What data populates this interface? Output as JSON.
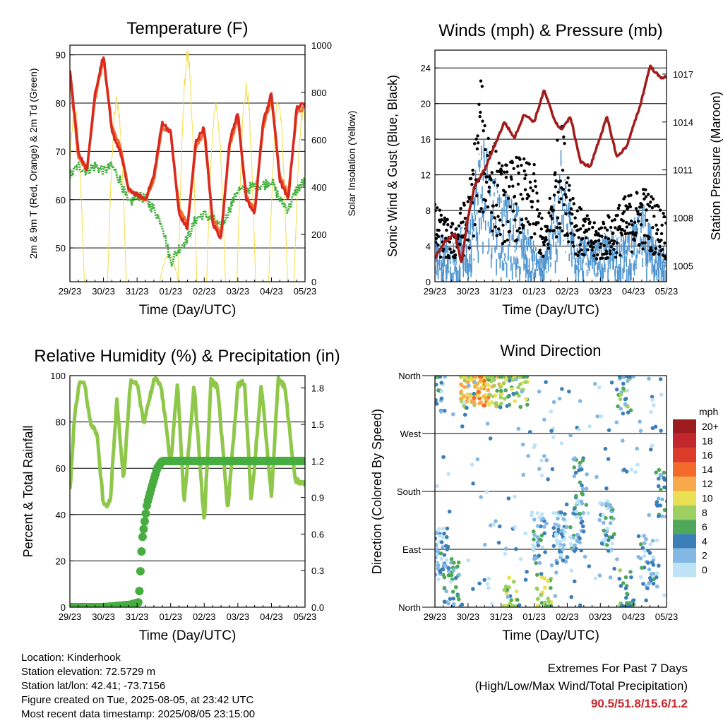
{
  "colors": {
    "temp_2m": "#d82a20",
    "temp_9m": "#f36a2a",
    "dewpoint": "#3fae3a",
    "insolation": "#f3dc4a",
    "wind_sonic": "#4f95d1",
    "wind_gust": "#000000",
    "pressure": "#a21c1c",
    "humidity": "#8fc74a",
    "rainfall": "#47ad40"
  },
  "shared_x_ticks": [
    "29/23",
    "30/23",
    "31/23",
    "01/23",
    "02/23",
    "03/23",
    "04/23",
    "05/23"
  ],
  "chart_data": [
    {
      "id": "temperature",
      "type": "line",
      "title": "Temperature (F)",
      "xlabel": "Time (Day/UTC)",
      "ylabel": "2m & 9m T (Red, Orange) & 2m Td (Green)",
      "y2label": "Solar Insolation (Yellow)",
      "x": [
        0,
        0.25,
        0.5,
        0.75,
        1,
        1.25,
        1.5,
        1.75,
        2,
        2.25,
        2.5,
        2.75,
        3,
        3.25,
        3.5,
        3.75,
        4,
        4.25,
        4.5,
        4.75,
        5,
        5.25,
        5.5,
        5.75,
        6,
        6.25,
        6.5,
        6.75,
        7
      ],
      "ylim": [
        43,
        92
      ],
      "yticks": [
        50,
        60,
        70,
        80,
        90
      ],
      "y2lim": [
        0,
        1000
      ],
      "y2ticks": [
        0,
        200,
        400,
        600,
        800,
        1000
      ],
      "series": [
        {
          "name": "2m T",
          "values": [
            87,
            70,
            66,
            82,
            90,
            74,
            70,
            62,
            61,
            60,
            65,
            76,
            74,
            57,
            54,
            72,
            75,
            55,
            52,
            72,
            78,
            60,
            57,
            76,
            82,
            64,
            60,
            79,
            80
          ]
        },
        {
          "name": "9m T",
          "values": [
            86,
            69,
            66,
            81,
            89,
            75,
            71,
            62,
            61,
            60,
            64,
            75,
            74,
            58,
            55,
            71,
            74,
            56,
            53,
            71,
            77,
            61,
            58,
            75,
            81,
            65,
            61,
            78,
            79
          ]
        },
        {
          "name": "2m Td",
          "values": [
            65,
            67,
            66,
            67,
            66,
            67,
            64,
            59,
            61,
            60,
            58,
            55,
            47,
            50,
            52,
            56,
            57,
            56,
            54,
            58,
            62,
            62,
            63,
            63,
            64,
            60,
            58,
            62,
            64
          ]
        },
        {
          "name": "Solar Insolation",
          "axis": "y2",
          "peaks_day": [
            0.15,
            1.4,
            2.95,
            3.5,
            4.35,
            5.25,
            6.2,
            6.95
          ],
          "peaks_value": [
            750,
            800,
            120,
            1000,
            780,
            850,
            800,
            750
          ]
        }
      ]
    },
    {
      "id": "winds",
      "type": "scatter",
      "title": "Winds (mph) & Pressure (mb)",
      "xlabel": "Time (Day/UTC)",
      "ylabel": "Sonic Wind & Gust (Blue, Black)",
      "y2label": "Station Pressure (Maroon)",
      "ylim": [
        0,
        26
      ],
      "yticks": [
        0,
        4,
        8,
        12,
        16,
        20,
        24
      ],
      "y2lim": [
        1004,
        1018.5
      ],
      "y2ticks": [
        1005,
        1008,
        1011,
        1014,
        1017
      ],
      "series": [
        {
          "name": "Sonic Wind",
          "x": [
            0,
            0.5,
            1,
            1.4,
            1.7,
            2,
            2.5,
            3,
            3.3,
            3.8,
            4.3,
            4.8,
            5.3,
            5.8,
            6.3,
            6.8,
            7
          ],
          "values": [
            4,
            3,
            5,
            12,
            10,
            7,
            6,
            3,
            2,
            10,
            4,
            3,
            4,
            4,
            6,
            3,
            3
          ]
        },
        {
          "name": "Gust",
          "x": [
            0,
            0.5,
            1,
            1.4,
            1.7,
            2,
            2.5,
            3,
            3.3,
            3.8,
            4.3,
            4.8,
            5.3,
            5.8,
            6.3,
            6.8,
            7
          ],
          "values": [
            8,
            6,
            9,
            21,
            16,
            12,
            13,
            12,
            5,
            17,
            8,
            6,
            7,
            9,
            10,
            8,
            7
          ]
        },
        {
          "name": "Station Pressure",
          "axis": "y2",
          "x": [
            0,
            0.3,
            0.6,
            0.8,
            1,
            1.2,
            1.5,
            1.8,
            2.1,
            2.4,
            2.7,
            3,
            3.3,
            3.6,
            3.8,
            4.1,
            4.4,
            4.7,
            4.9,
            5.2,
            5.5,
            5.8,
            6.2,
            6.5,
            6.8,
            6.95,
            7.1
          ],
          "values": [
            1005.5,
            1006.5,
            1007,
            1005.2,
            1008,
            1010,
            1011,
            1012.5,
            1014,
            1013,
            1014.5,
            1014,
            1016,
            1014.2,
            1013.5,
            1014.3,
            1011.5,
            1011.2,
            1012.5,
            1014.3,
            1011.8,
            1012.5,
            1015,
            1017.5,
            1016.8,
            1016.8,
            1016.8
          ]
        }
      ]
    },
    {
      "id": "humidity",
      "type": "line",
      "title": "Relative Humidity (%) & Precipitation (in)",
      "xlabel": "Time (Day/UTC)",
      "ylabel": "Percent & Total Rainfall",
      "ylim": [
        0,
        100
      ],
      "yticks": [
        0,
        20,
        40,
        60,
        80,
        100
      ],
      "y2lim": [
        0,
        1.9
      ],
      "y2ticks": [
        "0.0",
        "0.3",
        "0.6",
        "0.9",
        "1.2",
        "1.5",
        "1.8"
      ],
      "series": [
        {
          "name": "Relative Humidity",
          "x": [
            0,
            0.15,
            0.3,
            0.45,
            0.6,
            0.8,
            1,
            1.2,
            1.4,
            1.6,
            1.8,
            2,
            2.2,
            2.5,
            2.7,
            3,
            3.2,
            3.4,
            3.7,
            4,
            4.2,
            4.4,
            4.7,
            5,
            5.2,
            5.4,
            5.7,
            6,
            6.2,
            6.4,
            6.7,
            7
          ],
          "values": [
            50,
            85,
            97,
            96,
            80,
            75,
            44,
            45,
            90,
            55,
            97,
            96,
            80,
            98,
            97,
            62,
            97,
            45,
            96,
            36,
            98,
            95,
            42,
            96,
            97,
            45,
            96,
            47,
            99,
            95,
            55,
            53
          ]
        },
        {
          "name": "Total Rainfall",
          "axis": "y2",
          "x": [
            0,
            1,
            1.8,
            2.05,
            2.15,
            2.3,
            2.45,
            2.6,
            2.75,
            3,
            4,
            5,
            6,
            7
          ],
          "values": [
            0,
            0,
            0.02,
            0.04,
            0.55,
            0.85,
            1.0,
            1.14,
            1.2,
            1.2,
            1.2,
            1.2,
            1.2,
            1.2
          ]
        }
      ]
    },
    {
      "id": "wind_direction",
      "type": "scatter",
      "title": "Wind Direction",
      "xlabel": "Time (Day/UTC)",
      "ylabel": "Direction (Colored By Speed)",
      "y_categories": [
        "North",
        "East",
        "South",
        "West",
        "North"
      ],
      "legend": {
        "title": "mph",
        "labels": [
          "20+",
          "18",
          "16",
          "14",
          "12",
          "10",
          "8",
          "6",
          "4",
          "2",
          "0"
        ],
        "colors": [
          "#9b1b1e",
          "#c1272d",
          "#dd3b2a",
          "#f36a2a",
          "#f8a94a",
          "#e9df52",
          "#9ed061",
          "#4fa85a",
          "#3c7fb8",
          "#82b8e3",
          "#bfe3f6"
        ]
      }
    }
  ],
  "footer": {
    "location": "Location: Kinderhook",
    "elevation": "Station elevation: 72.5729 m",
    "latlon": "Station lat/lon: 42.41; -73.7156",
    "created": "Figure created on Tue, 2025-08-05, at 23:42 UTC",
    "recent": "Most recent data timestamp: 2025/08/05 23:15:00"
  },
  "extremes": {
    "title": "Extremes For Past 7 Days",
    "subtitle": "(High/Low/Max Wind/Total Precipitation)",
    "values": "90.5/51.8/15.6/1.2"
  }
}
